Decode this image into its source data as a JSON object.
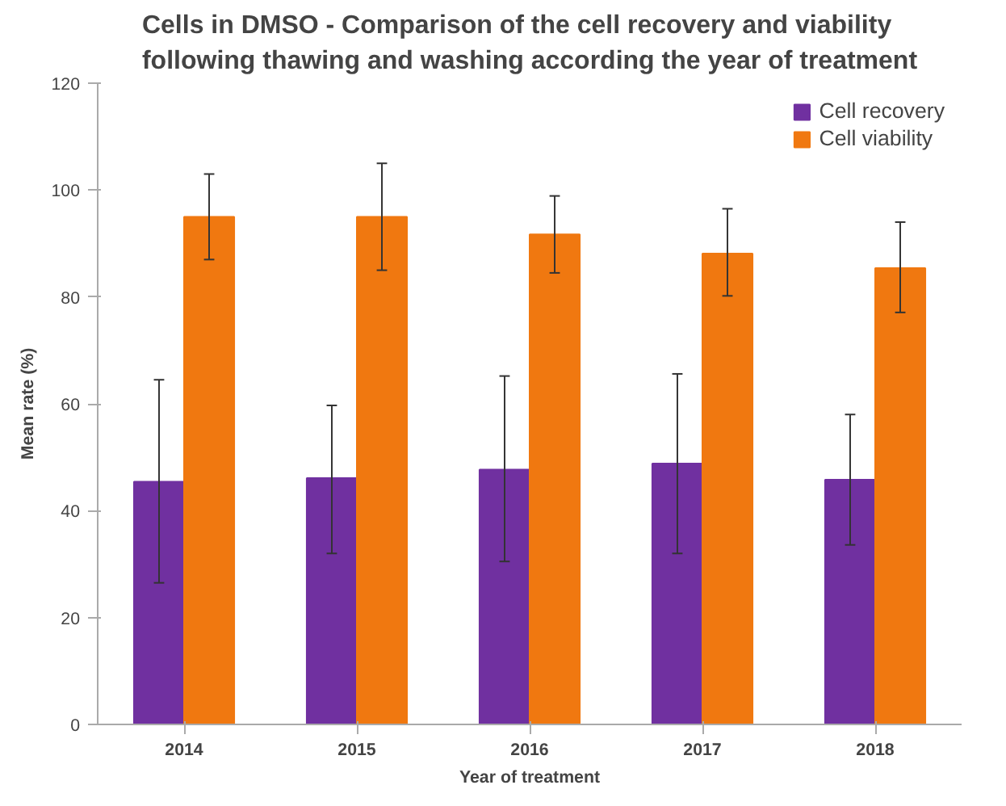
{
  "chart_data": {
    "type": "bar",
    "title": "Cells in DMSO - Comparison of the cell recovery and viability\nfollowing thawing and washing according the year of treatment",
    "xlabel": "Year of treatment",
    "ylabel": "Mean rate (%)",
    "categories": [
      "2014",
      "2015",
      "2016",
      "2017",
      "2018"
    ],
    "series": [
      {
        "name": "Cell recovery",
        "color": "#7030a0",
        "values": [
          45.4,
          46.1,
          47.7,
          48.8,
          45.8
        ],
        "errors": [
          [
            26.5,
            64.5
          ],
          [
            32,
            59.7
          ],
          [
            30.5,
            65.2
          ],
          [
            32,
            65.6
          ],
          [
            33.6,
            58
          ]
        ]
      },
      {
        "name": "Cell viability",
        "color": "#f07810",
        "values": [
          95,
          95,
          91.7,
          88.1,
          85.4
        ],
        "errors": [
          [
            87,
            103
          ],
          [
            85,
            105
          ],
          [
            84.5,
            98.9
          ],
          [
            80.2,
            96.5
          ],
          [
            77.1,
            94
          ]
        ]
      }
    ],
    "ylim": [
      0,
      120
    ],
    "yticks": [
      0,
      20,
      40,
      60,
      80,
      100,
      120
    ],
    "grid": false,
    "legend": "top right"
  }
}
